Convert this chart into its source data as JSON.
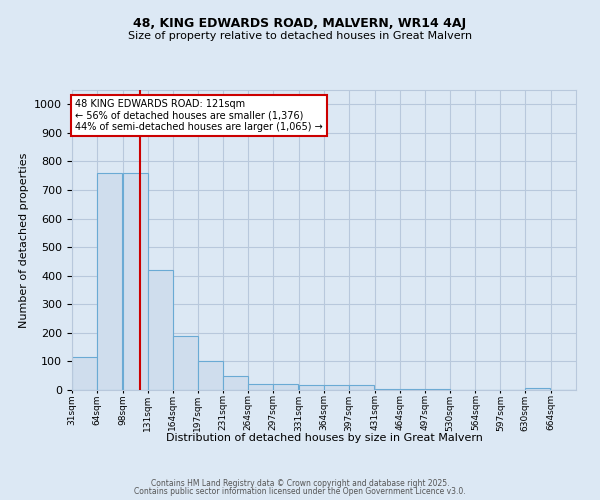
{
  "title1": "48, KING EDWARDS ROAD, MALVERN, WR14 4AJ",
  "title2": "Size of property relative to detached houses in Great Malvern",
  "xlabel": "Distribution of detached houses by size in Great Malvern",
  "ylabel": "Number of detached properties",
  "bar_color": "#cfdded",
  "bar_edge_color": "#6aaad4",
  "bar_edge_width": 0.8,
  "grid_color": "#b8c8dc",
  "bg_color": "#dce8f4",
  "vline_x": 121,
  "vline_color": "#cc0000",
  "annotation_line1": "48 KING EDWARDS ROAD: 121sqm",
  "annotation_line2": "← 56% of detached houses are smaller (1,376)",
  "annotation_line3": "44% of semi-detached houses are larger (1,065) →",
  "annotation_box_color": "#ffffff",
  "annotation_border_color": "#cc0000",
  "ylim": [
    0,
    1050
  ],
  "yticks": [
    0,
    100,
    200,
    300,
    400,
    500,
    600,
    700,
    800,
    900,
    1000
  ],
  "bin_edges": [
    31,
    64,
    98,
    131,
    164,
    197,
    231,
    264,
    297,
    331,
    364,
    397,
    431,
    464,
    497,
    530,
    564,
    597,
    630,
    664,
    697
  ],
  "bin_heights": [
    115,
    760,
    760,
    420,
    190,
    100,
    48,
    22,
    22,
    18,
    18,
    18,
    5,
    2,
    2,
    0,
    0,
    0,
    8,
    0
  ],
  "footer1": "Contains HM Land Registry data © Crown copyright and database right 2025.",
  "footer2": "Contains public sector information licensed under the Open Government Licence v3.0."
}
